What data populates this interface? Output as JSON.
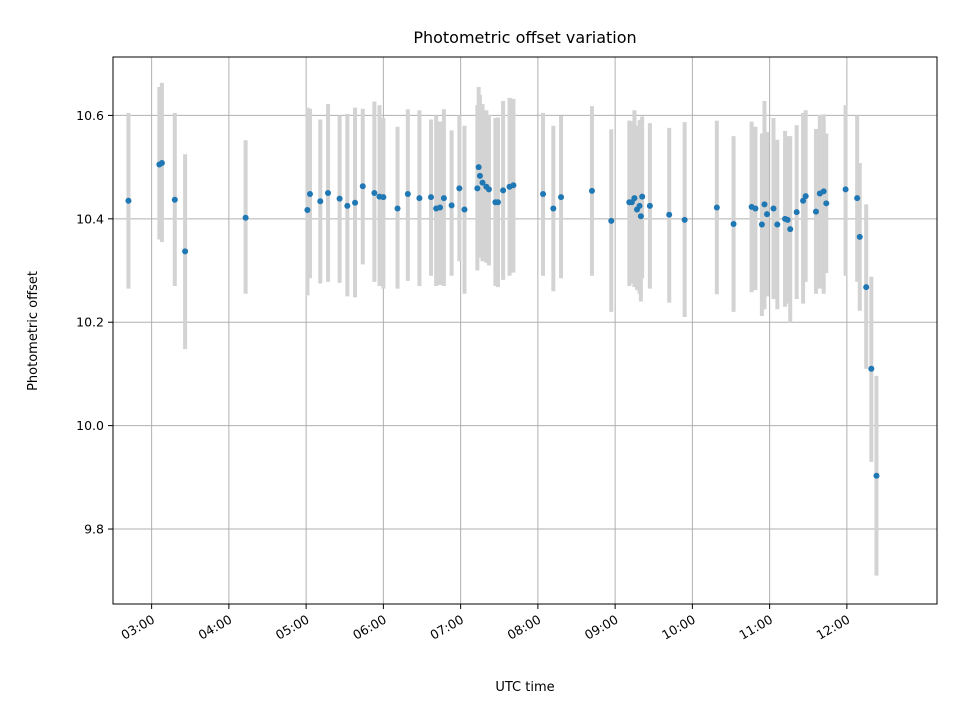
{
  "chart_data": {
    "type": "scatter",
    "title": "Photometric offset variation",
    "xlabel": "UTC time",
    "ylabel": "Photometric offset",
    "xlim": [
      "02:30",
      "13:10"
    ],
    "ylim": [
      9.655,
      10.713
    ],
    "x_tick_labels": [
      "03:00",
      "04:00",
      "05:00",
      "06:00",
      "07:00",
      "08:00",
      "09:00",
      "10:00",
      "11:00",
      "12:00"
    ],
    "y_tick_labels": [
      "9.8",
      "10.0",
      "10.2",
      "10.4",
      "10.6"
    ],
    "grid": true,
    "colors": {
      "point": "#1f77b4",
      "error_bar": "#d3d3d3",
      "grid": "#b0b0b0"
    },
    "series": [
      {
        "x": [
          "02:42",
          "03:06",
          "03:08",
          "03:18",
          "03:26",
          "04:13",
          "05:01",
          "05:03",
          "05:11",
          "05:17",
          "05:26",
          "05:32",
          "05:38",
          "05:44",
          "05:53",
          "05:57",
          "06:00",
          "06:11",
          "06:19",
          "06:28",
          "06:37",
          "06:41",
          "06:44",
          "06:47",
          "06:53",
          "06:59",
          "07:03",
          "07:13",
          "07:14",
          "07:15",
          "07:17",
          "07:20",
          "07:22",
          "07:27",
          "07:29",
          "07:33",
          "07:38",
          "07:41",
          "08:04",
          "08:12",
          "08:18",
          "08:42",
          "08:57",
          "09:11",
          "09:13",
          "09:15",
          "09:17",
          "09:19",
          "09:20",
          "09:21",
          "09:27",
          "09:42",
          "09:54",
          "10:19",
          "10:32",
          "10:46",
          "10:49",
          "10:54",
          "10:56",
          "10:58",
          "11:03",
          "11:06",
          "11:12",
          "11:14",
          "11:16",
          "11:21",
          "11:26",
          "11:28",
          "11:36",
          "11:39",
          "11:42",
          "11:44",
          "11:59",
          "12:08",
          "12:10",
          "12:15",
          "12:19",
          "12:23"
        ],
        "y": [
          10.435,
          10.505,
          10.508,
          10.437,
          10.337,
          10.402,
          10.417,
          10.448,
          10.434,
          10.45,
          10.439,
          10.425,
          10.431,
          10.463,
          10.45,
          10.443,
          10.442,
          10.42,
          10.448,
          10.44,
          10.442,
          10.42,
          10.422,
          10.44,
          10.426,
          10.459,
          10.418,
          10.459,
          10.5,
          10.483,
          10.47,
          10.462,
          10.457,
          10.432,
          10.432,
          10.455,
          10.462,
          10.465,
          10.448,
          10.42,
          10.442,
          10.454,
          10.396,
          10.432,
          10.432,
          10.44,
          10.418,
          10.425,
          10.405,
          10.443,
          10.425,
          10.408,
          10.398,
          10.422,
          10.39,
          10.423,
          10.42,
          10.389,
          10.428,
          10.409,
          10.42,
          10.389,
          10.4,
          10.398,
          10.38,
          10.413,
          10.435,
          10.444,
          10.414,
          10.449,
          10.453,
          10.43,
          10.457,
          10.44,
          10.365,
          10.268,
          10.11,
          9.903
        ],
        "yerr_low": [
          10.265,
          10.36,
          10.355,
          10.27,
          10.148,
          10.255,
          10.252,
          10.285,
          10.275,
          10.278,
          10.276,
          10.25,
          10.248,
          10.312,
          10.278,
          10.27,
          10.265,
          10.265,
          10.28,
          10.27,
          10.29,
          10.27,
          10.272,
          10.27,
          10.29,
          10.318,
          10.255,
          10.3,
          10.34,
          10.325,
          10.318,
          10.315,
          10.31,
          10.27,
          10.268,
          10.282,
          10.29,
          10.296,
          10.29,
          10.26,
          10.285,
          10.29,
          10.22,
          10.27,
          10.275,
          10.268,
          10.262,
          10.255,
          10.24,
          10.285,
          10.265,
          10.238,
          10.21,
          10.254,
          10.22,
          10.258,
          10.262,
          10.212,
          10.225,
          10.25,
          10.245,
          10.225,
          10.23,
          10.236,
          10.2,
          10.245,
          10.236,
          10.278,
          10.255,
          10.265,
          10.255,
          10.295,
          10.29,
          10.278,
          10.222,
          10.11,
          9.93,
          9.71
        ],
        "yerr_high": [
          10.605,
          10.655,
          10.663,
          10.605,
          10.525,
          10.552,
          10.615,
          10.613,
          10.592,
          10.622,
          10.6,
          10.603,
          10.615,
          10.613,
          10.627,
          10.62,
          10.595,
          10.578,
          10.612,
          10.61,
          10.592,
          10.6,
          10.588,
          10.612,
          10.571,
          10.6,
          10.58,
          10.62,
          10.655,
          10.64,
          10.622,
          10.61,
          10.601,
          10.595,
          10.596,
          10.628,
          10.634,
          10.632,
          10.605,
          10.58,
          10.599,
          10.618,
          10.573,
          10.59,
          10.589,
          10.61,
          10.58,
          10.591,
          10.57,
          10.598,
          10.585,
          10.576,
          10.587,
          10.59,
          10.56,
          10.588,
          10.578,
          10.565,
          10.628,
          10.568,
          10.595,
          10.553,
          10.57,
          10.56,
          10.56,
          10.581,
          10.605,
          10.61,
          10.574,
          10.601,
          10.602,
          10.565,
          10.62,
          10.6,
          10.508,
          10.428,
          10.288,
          10.096
        ]
      }
    ]
  }
}
